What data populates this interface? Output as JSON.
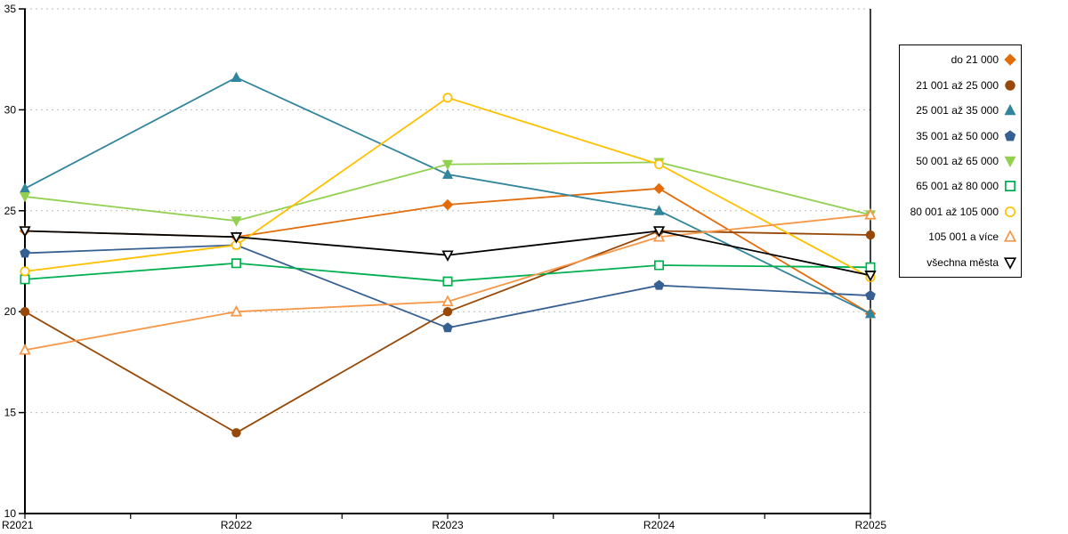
{
  "chart_data": {
    "type": "line",
    "title": "",
    "xlabel": "",
    "ylabel": "",
    "categories": [
      "R2021",
      "R2022",
      "R2023",
      "R2024",
      "R2025"
    ],
    "ylim": [
      10,
      35
    ],
    "yticks": [
      10,
      15,
      20,
      25,
      30,
      35
    ],
    "grid": "horizontal-dotted",
    "legend_position": "right",
    "series": [
      {
        "name": "do 21 000",
        "color": "#E36C0A",
        "marker": "diamond",
        "filled": true,
        "values": [
          24.0,
          23.7,
          25.3,
          26.1,
          19.9
        ]
      },
      {
        "name": "21 001 až 25 000",
        "color": "#984807",
        "marker": "circle",
        "filled": true,
        "values": [
          20.0,
          14.0,
          20.0,
          24.0,
          23.8
        ]
      },
      {
        "name": "25 001 až 35 000",
        "color": "#31859C",
        "marker": "triangle-up",
        "filled": true,
        "values": [
          26.1,
          31.6,
          26.8,
          25.0,
          19.9
        ]
      },
      {
        "name": "35 001 až 50 000",
        "color": "#376092",
        "marker": "pentagon",
        "filled": true,
        "values": [
          22.9,
          23.3,
          19.2,
          21.3,
          20.8
        ]
      },
      {
        "name": "50 001 až 65 000",
        "color": "#92D050",
        "marker": "triangle-down",
        "filled": true,
        "values": [
          25.7,
          24.5,
          27.3,
          27.4,
          24.8
        ]
      },
      {
        "name": "65 001 až 80 000",
        "color": "#00B050",
        "marker": "square",
        "filled": false,
        "values": [
          21.6,
          22.4,
          21.5,
          22.3,
          22.2
        ]
      },
      {
        "name": "80 001 až 105 000",
        "color": "#FFC000",
        "marker": "circle",
        "filled": false,
        "values": [
          22.0,
          23.3,
          30.6,
          27.3,
          21.7
        ]
      },
      {
        "name": "105 001 a více",
        "color": "#F79646",
        "marker": "triangle-up",
        "filled": false,
        "values": [
          18.1,
          20.0,
          20.5,
          23.7,
          24.8
        ]
      },
      {
        "name": "všechna města",
        "color": "#000000",
        "marker": "triangle-down",
        "filled": false,
        "values": [
          24.0,
          23.7,
          22.8,
          24.0,
          21.8
        ]
      }
    ],
    "colors": {
      "grid": "#BDBDBD",
      "axis": "#000000",
      "text": "#000000",
      "background": "#FFFFFF"
    }
  }
}
